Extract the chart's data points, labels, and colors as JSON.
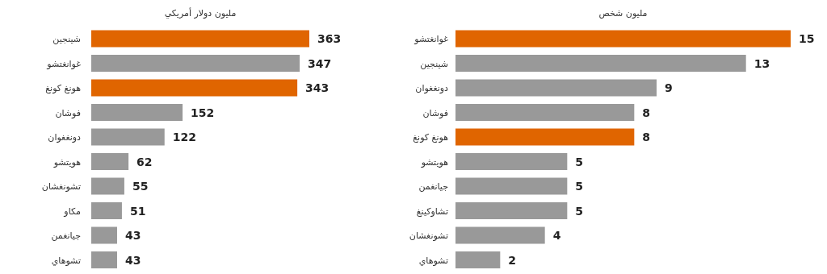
{
  "chart_data": [
    {
      "type": "bar",
      "orientation": "horizontal",
      "title": "مليون دولار أمريكي",
      "data_labels": true,
      "categories": [
        "شينجين",
        "غوانغتشو",
        "هونغ كونغ",
        "فوشان",
        "دونغغوان",
        "هويتشو",
        "تشونغشان",
        "مكاو",
        "جيانغمن",
        "تشوهاي"
      ],
      "values": [
        363,
        347,
        343,
        152,
        122,
        62,
        55,
        51,
        43,
        43
      ],
      "colors": [
        "#e06500",
        "#999999",
        "#e06500",
        "#999999",
        "#999999",
        "#999999",
        "#999999",
        "#999999",
        "#999999",
        "#999999"
      ]
    },
    {
      "type": "bar",
      "orientation": "horizontal",
      "title": "مليون شخص",
      "data_labels": true,
      "categories": [
        "غوانغتشو",
        "شينجين",
        "دونغغوان",
        "فوشان",
        "هونغ كونغ",
        "هويتشو",
        "جيانغمن",
        "تشاوكينغ",
        "تشونغشان",
        "تشوهاي"
      ],
      "values": [
        15,
        13,
        9,
        8,
        8,
        5,
        5,
        5,
        4,
        2
      ],
      "colors": [
        "#e06500",
        "#999999",
        "#999999",
        "#999999",
        "#e06500",
        "#999999",
        "#999999",
        "#999999",
        "#999999",
        "#999999"
      ]
    }
  ]
}
